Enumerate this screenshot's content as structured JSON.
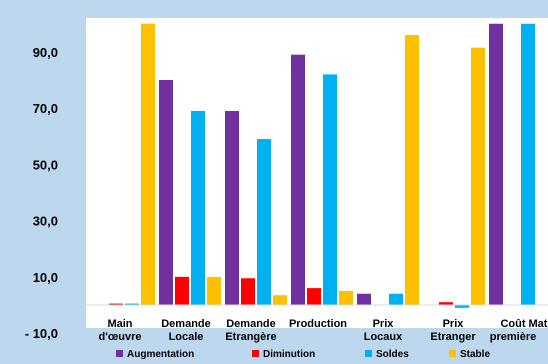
{
  "chart_data": {
    "type": "bar",
    "categories": [
      [
        "Main",
        "d'œuvre"
      ],
      [
        "Demande",
        "Locale"
      ],
      [
        "Demande",
        "Etrangère"
      ],
      [
        "Production"
      ],
      [
        "Prix",
        "Locaux"
      ],
      [
        "Prix",
        "Etranger"
      ],
      [
        "Coût",
        "première"
      ],
      [
        "Mat"
      ]
    ],
    "series": [
      {
        "name": "Augmentation",
        "color": "#7030a0",
        "values": [
          0,
          80,
          69,
          89,
          4,
          0,
          100,
          0
        ]
      },
      {
        "name": "Diminution",
        "color": "#ff0000",
        "values": [
          0.5,
          10,
          9.5,
          6,
          0,
          1,
          0,
          0
        ]
      },
      {
        "name": "Soldes",
        "color": "#00b0f0",
        "values": [
          0.5,
          69,
          59,
          82,
          4,
          -1,
          100,
          0
        ]
      },
      {
        "name": "Stable",
        "color": "#ffc000",
        "values": [
          100,
          10,
          3.5,
          5,
          96,
          91.5,
          0,
          1
        ]
      }
    ],
    "yticks": [
      "90,0",
      "70,0",
      "50,0",
      "30,0",
      "10,0",
      "- 10,0"
    ],
    "ytick_values": [
      90,
      70,
      50,
      30,
      10,
      -10
    ],
    "ylim": [
      -10,
      100
    ],
    "grid": false,
    "legend_position": "bottom"
  }
}
